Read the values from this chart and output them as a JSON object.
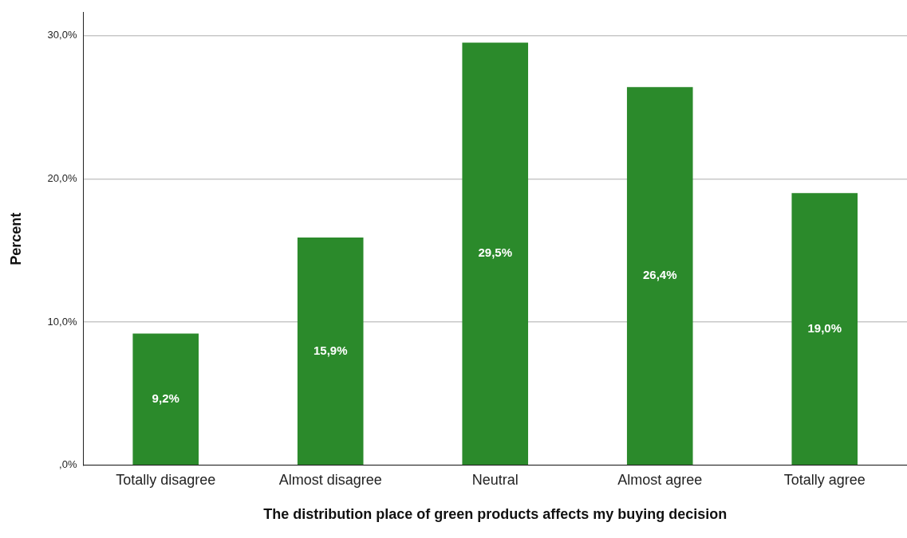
{
  "chart_data": {
    "type": "bar",
    "xlabel": "The distribution place of green products affects my buying decision",
    "ylabel": "Percent",
    "categories": [
      "Totally disagree",
      "Almost disagree",
      "Neutral",
      "Almost agree",
      "Totally agree"
    ],
    "values": [
      9.2,
      15.9,
      29.5,
      26.4,
      19.0
    ],
    "value_labels": [
      "9,2%",
      "15,9%",
      "29,5%",
      "26,4%",
      "19,0%"
    ],
    "color": "#2b8a2b",
    "ylim": [
      0,
      31.6
    ],
    "yticks": [
      {
        "value": 0,
        "label": ",0%"
      },
      {
        "value": 10,
        "label": "10,0%"
      },
      {
        "value": 20,
        "label": "20,0%"
      },
      {
        "value": 30,
        "label": "30,0%"
      }
    ],
    "grid": "y"
  }
}
